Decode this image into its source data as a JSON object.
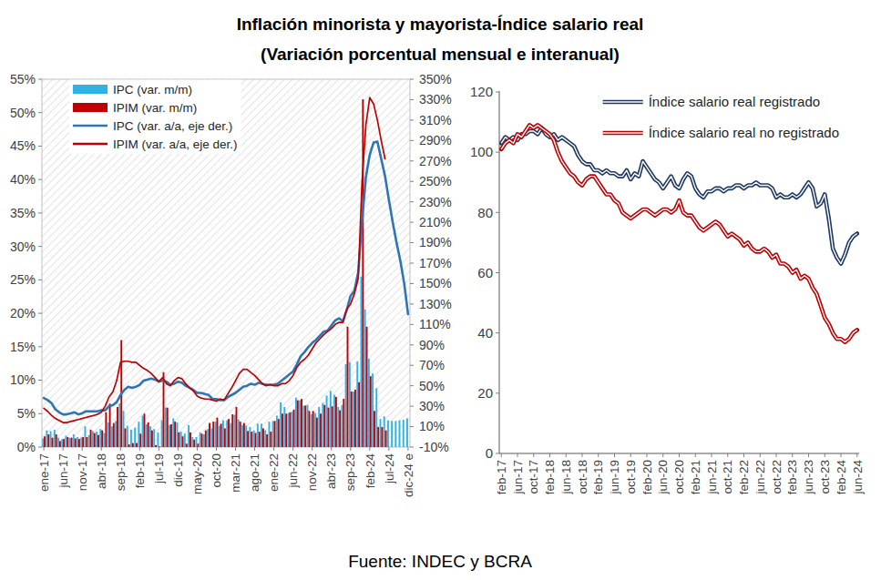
{
  "title": "Inflación minorista y mayorista-Índice salario real",
  "subtitle": "(Variación porcentual mensual e interanual)",
  "source": "Fuente: INDEC y BCRA",
  "chart_data": [
    {
      "type": "bar",
      "categories": [
        "ene-17",
        null,
        null,
        null,
        null,
        "jun-17",
        null,
        null,
        null,
        null,
        "nov-17",
        null,
        null,
        null,
        null,
        "abr-18",
        null,
        null,
        null,
        null,
        "sep-18",
        null,
        null,
        null,
        null,
        "feb-19",
        null,
        null,
        null,
        null,
        "jul-19",
        null,
        null,
        null,
        null,
        "dic-19",
        null,
        null,
        null,
        null,
        "may-20",
        null,
        null,
        null,
        null,
        "oct-20",
        null,
        null,
        null,
        null,
        "mar-21",
        null,
        null,
        null,
        null,
        "ago-21",
        null,
        null,
        null,
        null,
        "ene-22",
        null,
        null,
        null,
        null,
        "jun-22",
        null,
        null,
        null,
        null,
        "nov-22",
        null,
        null,
        null,
        null,
        "abr-23",
        null,
        null,
        null,
        null,
        "sep-23",
        null,
        null,
        null,
        null,
        "feb-24",
        null,
        null,
        null,
        null,
        "jul-24",
        null,
        null,
        null,
        null,
        "dic-24 e"
      ],
      "ylim": [
        0,
        55
      ],
      "yticks": [
        {
          "value": 0,
          "label": "0%"
        },
        {
          "value": 5,
          "label": "5%"
        },
        {
          "value": 10,
          "label": "10%"
        },
        {
          "value": 15,
          "label": "15%"
        },
        {
          "value": 20,
          "label": "20%"
        },
        {
          "value": 25,
          "label": "25%"
        },
        {
          "value": 30,
          "label": "30%"
        },
        {
          "value": 35,
          "label": "35%"
        },
        {
          "value": 40,
          "label": "40%"
        },
        {
          "value": 45,
          "label": "45%"
        },
        {
          "value": 50,
          "label": "50%"
        },
        {
          "value": 55,
          "label": "55%"
        }
      ],
      "y2lim": [
        -10,
        350
      ],
      "y2ticks": [
        {
          "value": -10,
          "label": "-10%"
        },
        {
          "value": 10,
          "label": "10%"
        },
        {
          "value": 30,
          "label": "30%"
        },
        {
          "value": 50,
          "label": "50%"
        },
        {
          "value": 70,
          "label": "70%"
        },
        {
          "value": 90,
          "label": "90%"
        },
        {
          "value": 110,
          "label": "110%"
        },
        {
          "value": 130,
          "label": "130%"
        },
        {
          "value": 150,
          "label": "150%"
        },
        {
          "value": 170,
          "label": "170%"
        },
        {
          "value": 190,
          "label": "190%"
        },
        {
          "value": 210,
          "label": "210%"
        },
        {
          "value": 230,
          "label": "230%"
        },
        {
          "value": 250,
          "label": "250%"
        },
        {
          "value": 270,
          "label": "270%"
        },
        {
          "value": 290,
          "label": "290%"
        },
        {
          "value": 310,
          "label": "310%"
        },
        {
          "value": 330,
          "label": "330%"
        },
        {
          "value": 350,
          "label": "350%"
        }
      ],
      "grid": false,
      "legend": "top-left",
      "series": [
        {
          "name": "IPC (var. m/m)",
          "type": "bar",
          "color": "#2fb2e6",
          "values": [
            1.3,
            2.5,
            2.4,
            2.6,
            1.4,
            1.2,
            1.7,
            1.4,
            1.9,
            1.5,
            1.4,
            3.1,
            1.8,
            2.4,
            2.3,
            2.7,
            2.1,
            3.7,
            3.1,
            3.9,
            6.5,
            5.4,
            3.2,
            2.6,
            2.9,
            3.8,
            4.7,
            3.4,
            3.1,
            2.7,
            2.2,
            4.0,
            5.9,
            3.3,
            4.3,
            3.7,
            2.3,
            2.0,
            3.3,
            1.5,
            1.5,
            2.2,
            1.9,
            2.7,
            2.8,
            3.8,
            3.2,
            4.0,
            4.0,
            3.6,
            4.8,
            4.1,
            3.3,
            3.2,
            3.0,
            2.5,
            3.5,
            3.5,
            2.5,
            3.8,
            3.9,
            4.7,
            6.7,
            6.0,
            5.1,
            5.3,
            7.4,
            7.0,
            6.2,
            6.3,
            4.9,
            5.1,
            6.0,
            6.6,
            7.7,
            8.4,
            7.8,
            6.0,
            6.3,
            12.4,
            12.7,
            8.3,
            12.8,
            25.5,
            20.6,
            13.2,
            11.0,
            8.8,
            4.2,
            4.6,
            4.0,
            3.9,
            3.9,
            4.0,
            4.1,
            4.3
          ]
        },
        {
          "name": "IPIM (var. m/m)",
          "type": "bar",
          "color": "#c00000",
          "values": [
            1.6,
            1.9,
            1.4,
            1.9,
            0.9,
            1.2,
            1.5,
            1.4,
            1.3,
            1.2,
            1.5,
            1.5,
            2.6,
            2.1,
            1.8,
            2.5,
            5.2,
            6.5,
            3.6,
            6.0,
            16.0,
            2.8,
            0.4,
            0.6,
            0.6,
            2.0,
            5.0,
            3.7,
            2.5,
            0.3,
            0.1,
            11.2,
            5.9,
            3.4,
            3.8,
            2.2,
            1.6,
            0.5,
            2.2,
            1.1,
            0.5,
            2.0,
            2.5,
            3.6,
            3.8,
            4.4,
            3.5,
            2.8,
            4.2,
            4.9,
            6.0,
            3.8,
            3.6,
            2.4,
            2.3,
            2.1,
            2.3,
            2.8,
            1.9,
            2.3,
            3.9,
            4.2,
            5.0,
            5.0,
            5.2,
            5.6,
            7.0,
            7.2,
            6.2,
            5.4,
            5.4,
            4.4,
            5.0,
            6.3,
            5.9,
            6.1,
            7.5,
            5.5,
            7.2,
            18.0,
            8.3,
            8.6,
            9.7,
            52.0,
            18.0,
            10.6,
            5.4,
            3.0,
            3.0,
            2.5,
            null,
            null,
            null,
            null,
            null,
            null
          ]
        },
        {
          "name": "IPC (var. a/a, eje der.)",
          "type": "line",
          "axis": "y2",
          "color": "#2e75b6",
          "values": [
            38,
            36,
            33,
            27,
            24,
            22,
            22,
            23,
            24,
            22,
            23,
            25,
            25,
            25,
            25,
            26,
            26,
            30,
            31,
            34,
            41,
            46,
            49,
            48,
            49,
            51,
            55,
            56,
            57,
            56,
            54,
            55,
            54,
            51,
            52,
            54,
            53,
            50,
            48,
            46,
            43,
            43,
            42,
            41,
            37,
            37,
            36,
            36,
            39,
            41,
            43,
            46,
            49,
            50,
            52,
            51,
            53,
            52,
            51,
            51,
            51,
            52,
            55,
            58,
            61,
            64,
            71,
            79,
            83,
            88,
            92,
            95,
            99,
            103,
            104,
            109,
            114,
            116,
            113,
            124,
            138,
            143,
            161,
            211,
            254,
            276,
            288,
            289,
            272,
            255,
            232,
            210,
            190,
            172,
            150,
            120
          ]
        },
        {
          "name": "IPIM (var. a/a, eje der.)",
          "type": "line",
          "axis": "y2",
          "color": "#c00000",
          "values": [
            28,
            25,
            21,
            18,
            16,
            14,
            14,
            15,
            16,
            17,
            18,
            19,
            20,
            21,
            22,
            24,
            30,
            39,
            44,
            55,
            73,
            74,
            74,
            73,
            73,
            70,
            67,
            65,
            62,
            58,
            54,
            58,
            52,
            50,
            55,
            58,
            57,
            52,
            48,
            45,
            40,
            38,
            37,
            37,
            36,
            35,
            37,
            36,
            42,
            48,
            55,
            62,
            66,
            66,
            63,
            60,
            56,
            52,
            50,
            51,
            50,
            50,
            52,
            52,
            55,
            60,
            68,
            73,
            76,
            80,
            86,
            92,
            96,
            100,
            103,
            106,
            110,
            112,
            112,
            125,
            130,
            140,
            155,
            250,
            305,
            332,
            326,
            310,
            290,
            272,
            null,
            null,
            null,
            null,
            null,
            null
          ]
        }
      ]
    },
    {
      "type": "line",
      "categories": [
        "feb-17",
        null,
        null,
        null,
        "jun-17",
        null,
        null,
        null,
        "oct-17",
        null,
        null,
        null,
        "feb-18",
        null,
        null,
        null,
        "jun-18",
        null,
        null,
        null,
        "oct-18",
        null,
        null,
        null,
        "feb-19",
        null,
        null,
        null,
        "jun-19",
        null,
        null,
        null,
        "oct-19",
        null,
        null,
        null,
        "feb-20",
        null,
        null,
        null,
        "jun-20",
        null,
        null,
        null,
        "oct-20",
        null,
        null,
        null,
        "feb-21",
        null,
        null,
        null,
        "jun-21",
        null,
        null,
        null,
        "oct-21",
        null,
        null,
        null,
        "feb-22",
        null,
        null,
        null,
        "jun-22",
        null,
        null,
        null,
        "oct-22",
        null,
        null,
        null,
        "feb-23",
        null,
        null,
        null,
        "jun-23",
        null,
        null,
        null,
        "oct-23",
        null,
        null,
        null,
        "feb-24",
        null,
        null,
        null,
        "jun-24"
      ],
      "ylim": [
        0,
        120
      ],
      "yticks": [
        0,
        20,
        40,
        60,
        80,
        100,
        120
      ],
      "grid": false,
      "legend": "top-right",
      "series": [
        {
          "name": "Índice salario real registrado",
          "color": "#1f3864",
          "line_style": "double",
          "values": [
            103,
            105,
            104,
            105,
            104,
            106,
            106,
            107,
            107,
            106,
            108,
            106,
            105,
            106,
            104,
            105,
            104,
            103,
            102,
            99,
            97,
            96,
            96,
            94,
            94,
            93,
            94,
            93,
            93,
            92,
            92,
            94,
            91,
            93,
            92,
            97,
            95,
            93,
            91,
            90,
            88,
            90,
            92,
            89,
            88,
            91,
            93,
            92,
            88,
            86,
            85,
            87,
            87,
            88,
            88,
            87,
            88,
            88,
            89,
            89,
            88,
            89,
            89,
            90,
            89,
            89,
            89,
            88,
            85,
            86,
            85,
            85,
            86,
            85,
            86,
            88,
            90,
            88,
            82,
            83,
            86,
            78,
            68,
            65,
            63,
            66,
            70,
            72,
            73
          ]
        },
        {
          "name": "Índice salario real no registrado",
          "color": "#c00000",
          "line_style": "double",
          "values": [
            101,
            103,
            104,
            103,
            106,
            105,
            107,
            109,
            108,
            109,
            108,
            107,
            106,
            104,
            100,
            97,
            95,
            93,
            92,
            90,
            89,
            91,
            92,
            92,
            90,
            88,
            86,
            86,
            84,
            83,
            80,
            79,
            78,
            79,
            80,
            81,
            81,
            80,
            79,
            80,
            81,
            81,
            80,
            81,
            84,
            80,
            79,
            79,
            77,
            75,
            74,
            75,
            76,
            77,
            76,
            74,
            72,
            73,
            72,
            71,
            69,
            70,
            68,
            67,
            67,
            68,
            67,
            65,
            66,
            63,
            63,
            62,
            60,
            61,
            58,
            59,
            58,
            55,
            53,
            49,
            45,
            43,
            40,
            38,
            38,
            37,
            38,
            40,
            41
          ]
        }
      ]
    }
  ]
}
